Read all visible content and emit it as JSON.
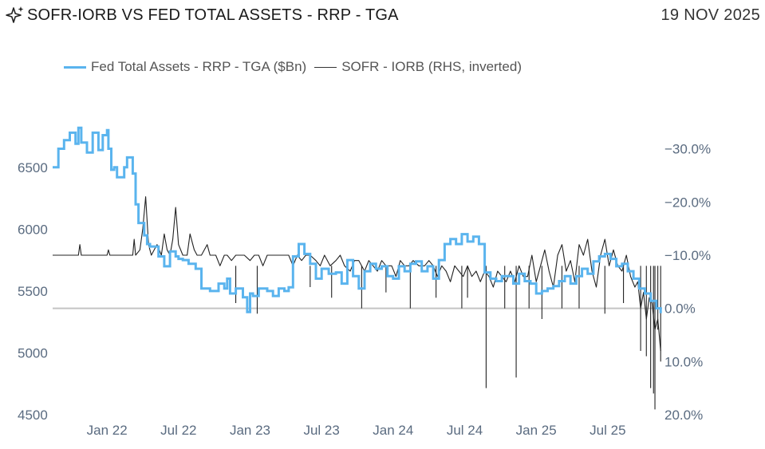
{
  "header": {
    "title": "SOFR-IORB VS FED TOTAL ASSETS - RRP - TGA",
    "date": "19 NOV 2025",
    "icon": "sparkle-icon"
  },
  "legend": {
    "blue_label": "Fed Total Assets - RRP - TGA ($Bn)",
    "black_label": "SOFR - IORB (RHS, inverted)"
  },
  "colors": {
    "blue": "#5ab4ee",
    "black": "#222222",
    "zero_line": "#c4c4c4",
    "tick": "#5a6b80"
  },
  "chart_data": {
    "type": "line",
    "title": "SOFR-IORB VS FED TOTAL ASSETS - RRP - TGA",
    "x_ticks": [
      {
        "t": 2022.0,
        "label": "Jan 22"
      },
      {
        "t": 2022.5,
        "label": "Jul 22"
      },
      {
        "t": 2023.0,
        "label": "Jan 23"
      },
      {
        "t": 2023.5,
        "label": "Jul 23"
      },
      {
        "t": 2024.0,
        "label": "Jan 24"
      },
      {
        "t": 2024.5,
        "label": "Jul 24"
      },
      {
        "t": 2025.0,
        "label": "Jan 25"
      },
      {
        "t": 2025.5,
        "label": "Jul 25"
      }
    ],
    "xlim": [
      2021.62,
      2025.88
    ],
    "left_axis": {
      "ylim": [
        4500,
        6950
      ],
      "ticks": [
        "4500",
        "5000",
        "5500",
        "6000",
        "6500"
      ]
    },
    "right_axis": {
      "ylim": [
        20,
        -37
      ],
      "inverted": true,
      "ticks": [
        "20.0%",
        "10.0%",
        "0.0%",
        "−10.0%",
        "−20.0%",
        "−30.0%"
      ],
      "tick_values": [
        20,
        10,
        0,
        -10,
        -20,
        -30
      ]
    },
    "series": [
      {
        "name": "Fed Total Assets - RRP - TGA ($Bn)",
        "axis": "left",
        "step": true,
        "x": [
          2021.62,
          2021.66,
          2021.7,
          2021.74,
          2021.78,
          2021.8,
          2021.82,
          2021.86,
          2021.9,
          2021.94,
          2021.97,
          2022.0,
          2022.01,
          2022.03,
          2022.05,
          2022.07,
          2022.09,
          2022.12,
          2022.14,
          2022.18,
          2022.2,
          2022.22,
          2022.26,
          2022.28,
          2022.3,
          2022.33,
          2022.36,
          2022.4,
          2022.44,
          2022.48,
          2022.5,
          2022.53,
          2022.57,
          2022.62,
          2022.66,
          2022.72,
          2022.78,
          2022.82,
          2022.84,
          2022.86,
          2022.9,
          2022.95,
          2022.98,
          2023.0,
          2023.02,
          2023.06,
          2023.12,
          2023.16,
          2023.2,
          2023.24,
          2023.27,
          2023.3,
          2023.34,
          2023.38,
          2023.42,
          2023.46,
          2023.5,
          2023.55,
          2023.6,
          2023.64,
          2023.68,
          2023.72,
          2023.76,
          2023.8,
          2023.84,
          2023.88,
          2023.92,
          2023.96,
          2024.0,
          2024.04,
          2024.08,
          2024.12,
          2024.16,
          2024.2,
          2024.24,
          2024.28,
          2024.32,
          2024.36,
          2024.4,
          2024.44,
          2024.48,
          2024.52,
          2024.56,
          2024.6,
          2024.64,
          2024.68,
          2024.72,
          2024.76,
          2024.8,
          2024.84,
          2024.88,
          2024.92,
          2024.96,
          2025.0,
          2025.04,
          2025.08,
          2025.12,
          2025.16,
          2025.2,
          2025.24,
          2025.28,
          2025.32,
          2025.36,
          2025.4,
          2025.44,
          2025.48,
          2025.52,
          2025.56,
          2025.6,
          2025.64,
          2025.68,
          2025.72,
          2025.76,
          2025.8,
          2025.84,
          2025.87
        ],
        "values": [
          6500,
          6650,
          6720,
          6780,
          6690,
          6820,
          6700,
          6620,
          6780,
          6640,
          6760,
          6800,
          6650,
          6480,
          6500,
          6420,
          6420,
          6500,
          6580,
          6450,
          6200,
          6050,
          5950,
          5880,
          5860,
          5860,
          5780,
          5700,
          5820,
          5780,
          5760,
          5750,
          5720,
          5680,
          5520,
          5500,
          5560,
          5520,
          5600,
          5480,
          5520,
          5450,
          5330,
          5480,
          5460,
          5520,
          5500,
          5460,
          5520,
          5500,
          5530,
          5780,
          5880,
          5800,
          5720,
          5600,
          5680,
          5640,
          5650,
          5560,
          5750,
          5620,
          5520,
          5660,
          5720,
          5680,
          5700,
          5620,
          5600,
          5700,
          5660,
          5720,
          5740,
          5660,
          5700,
          5600,
          5750,
          5880,
          5920,
          5880,
          5960,
          5900,
          5940,
          5880,
          5650,
          5600,
          5580,
          5620,
          5620,
          5560,
          5640,
          5580,
          5560,
          5480,
          5500,
          5520,
          5540,
          5580,
          5620,
          5560,
          5620,
          5680,
          5640,
          5740,
          5780,
          5800,
          5760,
          5700,
          5720,
          5660,
          5600,
          5520,
          5480,
          5420,
          5360,
          5320
        ]
      },
      {
        "name": "SOFR - IORB (RHS, inverted)",
        "axis": "right",
        "x": [
          2021.62,
          2021.8,
          2021.81,
          2021.82,
          2021.84,
          2022.0,
          2022.01,
          2022.02,
          2022.1,
          2022.18,
          2022.19,
          2022.2,
          2022.23,
          2022.25,
          2022.27,
          2022.29,
          2022.31,
          2022.33,
          2022.35,
          2022.38,
          2022.4,
          2022.42,
          2022.44,
          2022.46,
          2022.48,
          2022.5,
          2022.53,
          2022.56,
          2022.58,
          2022.61,
          2022.63,
          2022.66,
          2022.7,
          2022.72,
          2022.74,
          2022.76,
          2022.79,
          2022.82,
          2022.84,
          2022.87,
          2022.9,
          2022.93,
          2022.96,
          2023.0,
          2023.03,
          2023.06,
          2023.09,
          2023.12,
          2023.15,
          2023.18,
          2023.21,
          2023.24,
          2023.27,
          2023.3,
          2023.33,
          2023.36,
          2023.39,
          2023.42,
          2023.46,
          2023.49,
          2023.52,
          2023.56,
          2023.6,
          2023.63,
          2023.66,
          2023.7,
          2023.73,
          2023.76,
          2023.8,
          2023.83,
          2023.86,
          2023.89,
          2023.92,
          2023.95,
          2023.99,
          2024.02,
          2024.05,
          2024.08,
          2024.11,
          2024.14,
          2024.18,
          2024.22,
          2024.25,
          2024.28,
          2024.31,
          2024.34,
          2024.37,
          2024.4,
          2024.43,
          2024.46,
          2024.49,
          2024.52,
          2024.55,
          2024.58,
          2024.61,
          2024.64,
          2024.67,
          2024.7,
          2024.73,
          2024.76,
          2024.79,
          2024.82,
          2024.85,
          2024.88,
          2024.91,
          2024.94,
          2024.97,
          2025.0,
          2025.03,
          2025.06,
          2025.09,
          2025.12,
          2025.15,
          2025.18,
          2025.21,
          2025.24,
          2025.27,
          2025.3,
          2025.33,
          2025.36,
          2025.39,
          2025.42,
          2025.45,
          2025.48,
          2025.51,
          2025.54,
          2025.57,
          2025.6,
          2025.63,
          2025.66,
          2025.69,
          2025.71,
          2025.73,
          2025.75,
          2025.77,
          2025.79,
          2025.81,
          2025.83,
          2025.85,
          2025.87
        ],
        "values": [
          -10,
          -10,
          -12,
          -10,
          -10,
          -10,
          -11,
          -10,
          -10,
          -10,
          -13,
          -10,
          -11,
          -15,
          -21,
          -12,
          -10,
          -11,
          -12,
          -10,
          -14,
          -11,
          -10,
          -13,
          -19,
          -12,
          -10,
          -10,
          -14,
          -11,
          -10,
          -10,
          -12,
          -10,
          -10,
          -10,
          -8,
          -10,
          -10,
          -9,
          -10,
          -10,
          -10,
          -9,
          -10,
          -10,
          -8,
          -10,
          -10,
          -10,
          -10,
          -10,
          -10,
          -8,
          -10,
          -9,
          -10,
          -10,
          -9,
          -8,
          -10,
          -8,
          -9,
          -10,
          -8,
          -7,
          -9,
          -9,
          -7,
          -9,
          -8,
          -7,
          -9,
          -8,
          -8,
          -6,
          -9,
          -8,
          -8,
          -9,
          -8,
          -8,
          -9,
          -8,
          -6,
          -8,
          -7,
          -5,
          -8,
          -7,
          -6,
          -8,
          -6,
          -7,
          -5,
          -7,
          -6,
          -4,
          -7,
          -6,
          -5,
          -7,
          -5,
          -8,
          -6,
          -6,
          -10,
          -5,
          -8,
          -11,
          -7,
          -4,
          -10,
          -12,
          -7,
          -9,
          -5,
          -12,
          -10,
          -13,
          -7,
          -4,
          -10,
          -13,
          -8,
          -11,
          -8,
          -7,
          -10,
          -6,
          -4,
          -5,
          0,
          -3,
          2,
          -2,
          -1,
          4,
          2,
          8
        ]
      }
    ],
    "spikes": [
      {
        "t": 2022.9,
        "y": -1
      },
      {
        "t": 2023.05,
        "y": 1
      },
      {
        "t": 2023.42,
        "y": -4
      },
      {
        "t": 2023.57,
        "y": -2
      },
      {
        "t": 2023.78,
        "y": 0
      },
      {
        "t": 2023.95,
        "y": -3
      },
      {
        "t": 2024.12,
        "y": 0
      },
      {
        "t": 2024.3,
        "y": -2
      },
      {
        "t": 2024.48,
        "y": 0
      },
      {
        "t": 2024.52,
        "y": -2
      },
      {
        "t": 2024.65,
        "y": 15
      },
      {
        "t": 2024.78,
        "y": 0
      },
      {
        "t": 2024.86,
        "y": 13
      },
      {
        "t": 2024.95,
        "y": 0
      },
      {
        "t": 2025.04,
        "y": 2
      },
      {
        "t": 2025.18,
        "y": 0
      },
      {
        "t": 2025.3,
        "y": 0
      },
      {
        "t": 2025.48,
        "y": 1
      },
      {
        "t": 2025.61,
        "y": -1
      },
      {
        "t": 2025.73,
        "y": 8
      },
      {
        "t": 2025.77,
        "y": 9
      },
      {
        "t": 2025.8,
        "y": 15
      },
      {
        "t": 2025.82,
        "y": 16
      },
      {
        "t": 2025.83,
        "y": 19
      },
      {
        "t": 2025.85,
        "y": 4
      },
      {
        "t": 2025.87,
        "y": 10
      }
    ]
  }
}
